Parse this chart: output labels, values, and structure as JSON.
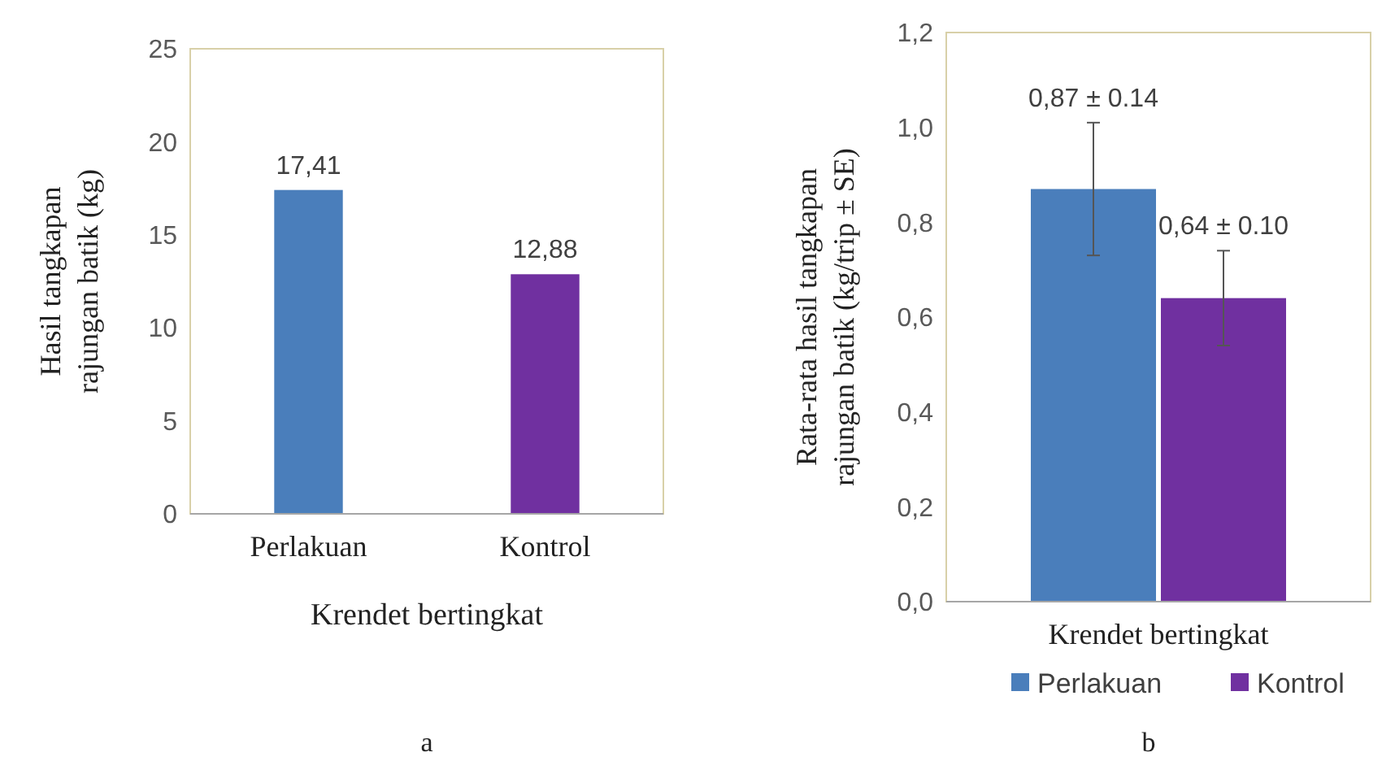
{
  "chart_data": [
    {
      "type": "bar",
      "categories": [
        "Perlakuan",
        "Kontrol"
      ],
      "values": [
        17.41,
        12.88
      ],
      "value_labels": [
        "17,41",
        "12,88"
      ],
      "colors": [
        "#4a7ebb",
        "#7030a0"
      ],
      "ylim": [
        0,
        25
      ],
      "yticks": [
        0,
        5,
        10,
        15,
        20,
        25
      ],
      "xlabel": "Krendet bertingkat",
      "ylabel": "Hasil tangkapan\nrajungan batik (kg)",
      "annotations": [
        "a"
      ],
      "legend": false
    },
    {
      "type": "bar",
      "categories": [
        "Krendet bertingkat"
      ],
      "series": [
        {
          "name": "Perlakuan",
          "color": "#4a7ebb",
          "values": [
            0.87
          ],
          "errors": [
            0.14
          ],
          "value_labels": [
            "0,87 ± 0.14"
          ]
        },
        {
          "name": "Kontrol",
          "color": "#7030a0",
          "values": [
            0.64
          ],
          "errors": [
            0.1
          ],
          "value_labels": [
            "0,64 ± 0.10"
          ]
        }
      ],
      "ylim": [
        0,
        1.2
      ],
      "yticks": [
        {
          "value": 0,
          "label": "0,0"
        },
        {
          "value": 0.2,
          "label": "0,2"
        },
        {
          "value": 0.4,
          "label": "0,4"
        },
        {
          "value": 0.6,
          "label": "0,6"
        },
        {
          "value": 0.8,
          "label": "0,8"
        },
        {
          "value": 1.0,
          "label": "1,0"
        },
        {
          "value": 1.2,
          "label": "1,2"
        }
      ],
      "ylabel": "Rata-rata hasil tangkapan\nrajungan batik (kg/trip ± SE)",
      "annotations": [
        "b"
      ],
      "legend": "bottom"
    }
  ]
}
